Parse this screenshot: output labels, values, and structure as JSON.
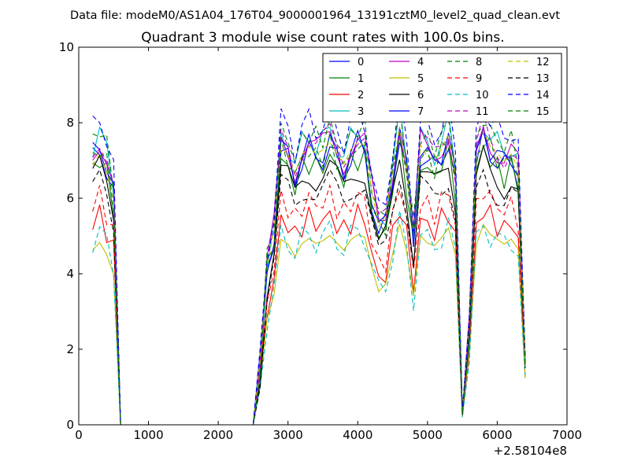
{
  "chart_data": {
    "type": "line",
    "suptitle": "Data file: modeM0/AS1A04_176T04_9000001964_13191cztM0_level2_quad_clean.evt",
    "title": "Quadrant 3 module wise count rates with 100.0s bins.",
    "xlabel": "",
    "ylabel": "",
    "x_offset_label": "+2.58104e8",
    "xlim": [
      0,
      7000
    ],
    "ylim": [
      0,
      10
    ],
    "x_ticks": [
      0,
      1000,
      2000,
      3000,
      4000,
      5000,
      6000,
      7000
    ],
    "y_ticks": [
      0,
      2,
      4,
      6,
      8,
      10
    ],
    "x_tick_labels": [
      "0",
      "1000",
      "2000",
      "3000",
      "4000",
      "5000",
      "6000",
      "7000"
    ],
    "y_tick_labels": [
      "0",
      "2",
      "4",
      "6",
      "8",
      "10"
    ],
    "grid": false,
    "legend_position": "top-right",
    "x": [
      200,
      300,
      400,
      500,
      600,
      700,
      800,
      900,
      1000,
      1100,
      1200,
      1300,
      1400,
      1500,
      1600,
      1700,
      1800,
      1900,
      2000,
      2100,
      2200,
      2300,
      2400,
      2500,
      2600,
      2700,
      2800,
      2900,
      3000,
      3100,
      3200,
      3300,
      3400,
      3500,
      3600,
      3700,
      3800,
      3900,
      4000,
      4100,
      4200,
      4300,
      4400,
      4500,
      4600,
      4700,
      4800,
      4900,
      5000,
      5100,
      5200,
      5300,
      5400,
      5500,
      5600,
      5700,
      5800,
      5900,
      6000,
      6100,
      6200,
      6300,
      6400
    ],
    "series": [
      {
        "name": "0",
        "color": "#0000ff",
        "dash": "solid",
        "scale": 1.0
      },
      {
        "name": "1",
        "color": "#008000",
        "dash": "solid",
        "scale": 0.97
      },
      {
        "name": "2",
        "color": "#ff0000",
        "dash": "solid",
        "scale": 0.76
      },
      {
        "name": "3",
        "color": "#00bfbf",
        "dash": "solid",
        "scale": 1.06
      },
      {
        "name": "4",
        "color": "#bf00bf",
        "dash": "solid",
        "scale": 1.04
      },
      {
        "name": "5",
        "color": "#bfbf00",
        "dash": "solid",
        "scale": 0.66
      },
      {
        "name": "6",
        "color": "#000000",
        "dash": "solid",
        "scale": 0.93
      },
      {
        "name": "7",
        "color": "#0000ff",
        "dash": "solid",
        "scale": 1.02
      },
      {
        "name": "8",
        "color": "#008000",
        "dash": "dashed",
        "scale": 1.08
      },
      {
        "name": "9",
        "color": "#ff0000",
        "dash": "dashed",
        "scale": 0.83
      },
      {
        "name": "10",
        "color": "#00bfbf",
        "dash": "dashed",
        "scale": 0.7
      },
      {
        "name": "11",
        "color": "#bf00bf",
        "dash": "dashed",
        "scale": 1.05
      },
      {
        "name": "12",
        "color": "#bfbf00",
        "dash": "dashed",
        "scale": 0.98
      },
      {
        "name": "13",
        "color": "#000000",
        "dash": "dashed",
        "scale": 0.88
      },
      {
        "name": "14",
        "color": "#0000ff",
        "dash": "dashed",
        "scale": 1.12
      },
      {
        "name": "15",
        "color": "#008000",
        "dash": "dashed",
        "scale": 1.01
      }
    ],
    "base_profile": [
      7.0,
      7.3,
      6.8,
      6.0,
      0.0,
      0.0,
      0.0,
      0.0,
      0.0,
      0.0,
      0.0,
      0.0,
      0.0,
      0.0,
      0.0,
      0.0,
      0.0,
      0.0,
      0.0,
      0.0,
      0.0,
      0.0,
      0.0,
      0.0,
      1.5,
      4.0,
      5.0,
      7.2,
      7.0,
      6.5,
      7.0,
      7.2,
      7.0,
      7.1,
      7.3,
      7.0,
      6.7,
      7.1,
      7.3,
      7.2,
      6.0,
      5.0,
      5.3,
      6.5,
      7.7,
      6.6,
      4.8,
      7.2,
      6.9,
      6.8,
      7.1,
      7.5,
      6.4,
      0.3,
      2.5,
      6.8,
      7.6,
      7.2,
      7.0,
      6.8,
      7.0,
      6.6,
      1.4
    ]
  }
}
